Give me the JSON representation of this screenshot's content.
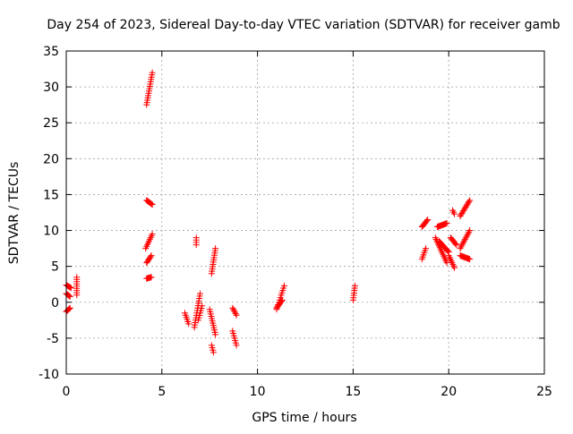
{
  "chart_data": {
    "type": "scatter",
    "title": "Day 254 of 2023, Sidereal Day-to-day VTEC variation (SDTVAR) for receiver gamb",
    "xlabel": "GPS time / hours",
    "ylabel": "SDTVAR / TECUs",
    "xlim": [
      0,
      25
    ],
    "ylim": [
      -10,
      35
    ],
    "xticks": [
      0,
      5,
      10,
      15,
      20,
      25
    ],
    "yticks": [
      -10,
      -5,
      0,
      5,
      10,
      15,
      20,
      25,
      30,
      35
    ],
    "grid": true,
    "marker": "+",
    "color": "#ff0000",
    "series": [
      {
        "name": "SDTVAR",
        "segments": [
          {
            "x0": 0.0,
            "y0": 2.4,
            "x1": 0.25,
            "y1": 2.0
          },
          {
            "x0": 0.0,
            "y0": 1.2,
            "x1": 0.2,
            "y1": 0.8
          },
          {
            "x0": 0.0,
            "y0": -1.3,
            "x1": 0.2,
            "y1": -0.8
          },
          {
            "x0": 0.55,
            "y0": 3.5,
            "x1": 0.55,
            "y1": 1.0
          },
          {
            "x0": 4.2,
            "y0": 27.5,
            "x1": 4.5,
            "y1": 32.0
          },
          {
            "x0": 4.2,
            "y0": 14.2,
            "x1": 4.5,
            "y1": 13.6
          },
          {
            "x0": 4.15,
            "y0": 7.5,
            "x1": 4.5,
            "y1": 9.5
          },
          {
            "x0": 4.2,
            "y0": 5.5,
            "x1": 4.45,
            "y1": 6.5
          },
          {
            "x0": 4.2,
            "y0": 3.3,
            "x1": 4.45,
            "y1": 3.5
          },
          {
            "x0": 6.2,
            "y0": -1.5,
            "x1": 6.4,
            "y1": -3.0
          },
          {
            "x0": 6.8,
            "y0": 9.0,
            "x1": 6.8,
            "y1": 8.0
          },
          {
            "x0": 6.7,
            "y0": -3.5,
            "x1": 7.0,
            "y1": 1.2
          },
          {
            "x0": 6.9,
            "y0": -2.5,
            "x1": 7.1,
            "y1": -0.5
          },
          {
            "x0": 7.6,
            "y0": 4.0,
            "x1": 7.8,
            "y1": 7.5
          },
          {
            "x0": 7.5,
            "y0": -1.0,
            "x1": 7.8,
            "y1": -4.5
          },
          {
            "x0": 7.6,
            "y0": -6.0,
            "x1": 7.7,
            "y1": -7.0
          },
          {
            "x0": 8.7,
            "y0": -0.8,
            "x1": 8.9,
            "y1": -1.8
          },
          {
            "x0": 8.7,
            "y0": -4.0,
            "x1": 8.9,
            "y1": -6.0
          },
          {
            "x0": 11.0,
            "y0": -1.0,
            "x1": 11.4,
            "y1": 2.3
          },
          {
            "x0": 11.0,
            "y0": -0.8,
            "x1": 11.3,
            "y1": 0.3
          },
          {
            "x0": 15.0,
            "y0": 0.3,
            "x1": 15.1,
            "y1": 2.3
          },
          {
            "x0": 18.6,
            "y0": 6.0,
            "x1": 18.8,
            "y1": 7.5
          },
          {
            "x0": 18.6,
            "y0": 10.5,
            "x1": 18.9,
            "y1": 11.5
          },
          {
            "x0": 19.4,
            "y0": 10.5,
            "x1": 19.9,
            "y1": 11.0
          },
          {
            "x0": 19.3,
            "y0": 9.0,
            "x1": 19.9,
            "y1": 5.5
          },
          {
            "x0": 19.5,
            "y0": 8.5,
            "x1": 20.0,
            "y1": 7.0
          },
          {
            "x0": 20.0,
            "y0": 6.5,
            "x1": 20.3,
            "y1": 4.8
          },
          {
            "x0": 20.1,
            "y0": 9.0,
            "x1": 20.4,
            "y1": 8.0
          },
          {
            "x0": 20.2,
            "y0": 12.8,
            "x1": 20.3,
            "y1": 12.3
          },
          {
            "x0": 20.6,
            "y0": 12.0,
            "x1": 21.1,
            "y1": 14.2
          },
          {
            "x0": 20.6,
            "y0": 7.5,
            "x1": 21.1,
            "y1": 10.0
          },
          {
            "x0": 20.6,
            "y0": 6.5,
            "x1": 21.1,
            "y1": 6.0
          }
        ]
      }
    ]
  }
}
